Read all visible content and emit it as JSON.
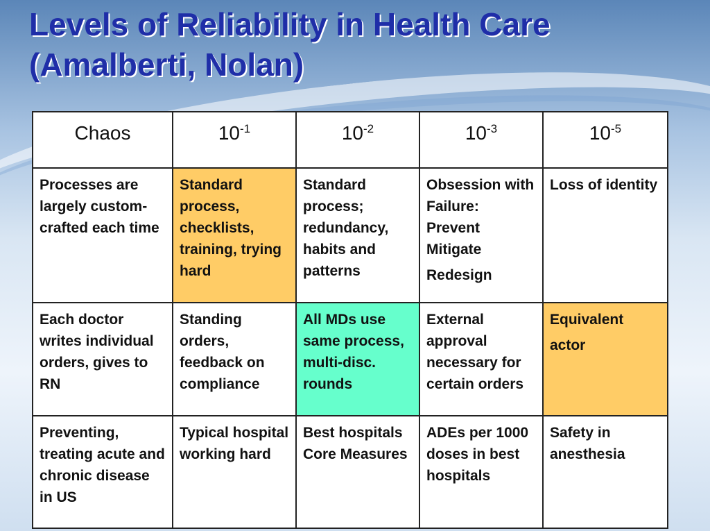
{
  "title": {
    "line1": "Levels of Reliability in Health Care",
    "line2": "(Amalberti, Nolan)"
  },
  "table": {
    "headers": [
      {
        "base": "Chaos",
        "exp": ""
      },
      {
        "base": "10",
        "exp": "-1"
      },
      {
        "base": "10",
        "exp": "-2"
      },
      {
        "base": "10",
        "exp": "-3"
      },
      {
        "base": "10",
        "exp": "-5"
      }
    ],
    "rows": [
      {
        "cells": [
          {
            "lines": [
              "Processes are largely custom-crafted each time"
            ],
            "highlight": ""
          },
          {
            "lines": [
              "Standard process, checklists, training, trying hard"
            ],
            "highlight": "#ffcc66"
          },
          {
            "lines": [
              "Standard process; redundancy, habits and patterns"
            ],
            "highlight": ""
          },
          {
            "lines": [
              "Obsession with Failure: Prevent Mitigate",
              "Redesign"
            ],
            "highlight": ""
          },
          {
            "lines": [
              "Loss of identity"
            ],
            "highlight": ""
          }
        ]
      },
      {
        "cells": [
          {
            "lines": [
              "Each doctor writes individual orders, gives to RN"
            ],
            "highlight": ""
          },
          {
            "lines": [
              "Standing orders, feedback on compliance"
            ],
            "highlight": ""
          },
          {
            "lines": [
              "All MDs use same process, multi-disc. rounds"
            ],
            "highlight": "#66ffcc"
          },
          {
            "lines": [
              "External approval necessary for certain orders"
            ],
            "highlight": ""
          },
          {
            "lines": [
              "Equivalent",
              "actor"
            ],
            "highlight": "#ffcc66"
          }
        ]
      },
      {
        "cells": [
          {
            "lines": [
              "Preventing, treating acute and chronic disease in US"
            ],
            "highlight": ""
          },
          {
            "lines": [
              "Typical hospital working hard"
            ],
            "highlight": ""
          },
          {
            "lines": [
              "Best hospitals Core Measures"
            ],
            "highlight": ""
          },
          {
            "lines": [
              "ADEs per 1000 doses in best hospitals"
            ],
            "highlight": ""
          },
          {
            "lines": [
              "Safety in anesthesia"
            ],
            "highlight": ""
          }
        ]
      }
    ]
  }
}
